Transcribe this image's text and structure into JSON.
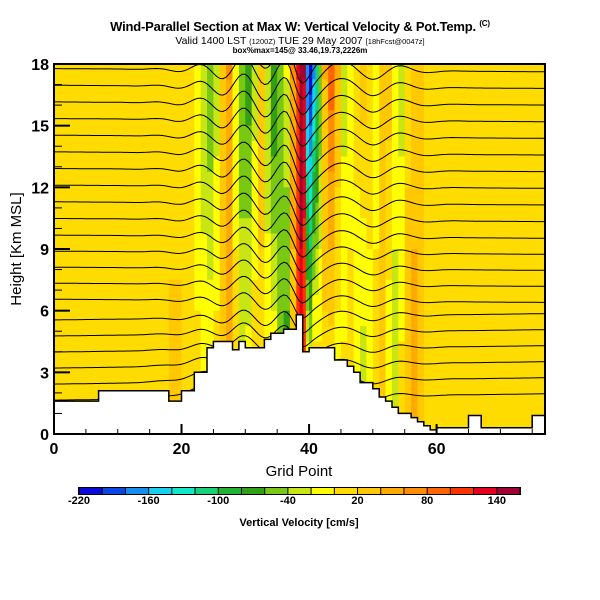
{
  "header": {
    "title": "Wind-Parallel Section at Max W: Vertical Velocity & Pot.Temp.",
    "copyright": "(C)",
    "valid_prefix": "Valid 1400 LST",
    "valid_utc": "(1200Z)",
    "valid_date": "TUE 29 May 2007",
    "valid_suffix": "[18hFcst@0047z]",
    "subtitle": "box%max=145@ 33.46,19.73,2226m"
  },
  "chart_data": {
    "type": "heatmap",
    "title": "Wind-Parallel Section at Max W: Vertical Velocity & Pot.Temp.",
    "xlabel": "Grid Point",
    "ylabel": "Height [Km MSL]",
    "xlim": [
      0,
      77
    ],
    "ylim": [
      0,
      18
    ],
    "x_ticks": [
      "0",
      "20",
      "40",
      "60"
    ],
    "x_tick_values": [
      0,
      20,
      40,
      60
    ],
    "y_ticks": [
      "0",
      "3",
      "6",
      "9",
      "12",
      "15",
      "18"
    ],
    "y_tick_values": [
      0,
      3,
      6,
      9,
      12,
      15,
      18
    ],
    "colorbar": {
      "title": "Vertical Velocity [cm/s]",
      "tick_labels": [
        "-220",
        "-160",
        "-100",
        "-40",
        "20",
        "80",
        "140"
      ],
      "levels": [
        -220,
        -200,
        -180,
        -160,
        -140,
        -120,
        -100,
        -80,
        -60,
        -40,
        -20,
        0,
        20,
        40,
        60,
        80,
        100,
        120,
        140,
        160
      ],
      "colors": [
        "#0a0ad8",
        "#0a46e6",
        "#148cf0",
        "#14d2f0",
        "#14e6c8",
        "#14d278",
        "#1eb432",
        "#32a014",
        "#78c814",
        "#c8e614",
        "#ffff00",
        "#ffdc00",
        "#ffc800",
        "#ffaa00",
        "#ff8c00",
        "#ff6400",
        "#ff3200",
        "#e6001e",
        "#a00032"
      ]
    },
    "vertical_velocity_columns": {
      "description_units": "cm/s",
      "x": [
        0,
        2,
        4,
        6,
        8,
        10,
        12,
        14,
        16,
        18,
        20,
        22,
        23,
        24,
        25,
        26,
        27,
        28,
        29,
        30,
        31,
        32,
        33,
        34,
        35,
        36,
        37,
        38,
        38.5,
        39,
        39.5,
        40,
        40.5,
        41,
        41.5,
        42,
        43,
        44,
        45,
        46,
        47,
        48,
        49,
        50,
        51,
        52,
        53,
        54,
        55,
        56,
        57,
        58,
        60,
        62,
        64,
        66,
        68,
        70,
        72,
        74,
        77
      ],
      "w_upper": [
        5,
        5,
        8,
        5,
        8,
        5,
        8,
        10,
        8,
        5,
        8,
        -20,
        -40,
        -60,
        -30,
        30,
        60,
        -20,
        -60,
        -70,
        -30,
        30,
        -40,
        -80,
        -60,
        -20,
        60,
        120,
        150,
        140,
        -180,
        -210,
        -170,
        -120,
        -60,
        40,
        90,
        40,
        -30,
        -20,
        10,
        30,
        10,
        -10,
        20,
        30,
        -10,
        -30,
        10,
        20,
        30,
        10,
        5,
        5,
        8,
        5,
        5,
        5,
        5,
        5,
        5
      ],
      "w_lower": [
        5,
        8,
        5,
        10,
        8,
        5,
        8,
        10,
        20,
        30,
        20,
        10,
        5,
        8,
        15,
        30,
        50,
        20,
        -10,
        0,
        20,
        10,
        5,
        10,
        -40,
        -80,
        20,
        100,
        130,
        90,
        30,
        10,
        60,
        40,
        20,
        10,
        -10,
        -20,
        10,
        20,
        -20,
        -40,
        -10,
        10,
        30,
        -20,
        -30,
        10,
        40,
        60,
        30,
        10,
        8,
        10,
        5,
        8,
        5,
        5,
        5,
        5,
        5
      ]
    },
    "potential_temperature_contours": {
      "note": "black isentropes, labels illegible at source resolution",
      "count": 22
    },
    "terrain": {
      "x": [
        0,
        7,
        7,
        18,
        18,
        20,
        20,
        22,
        22,
        24,
        24,
        25,
        25,
        28,
        28,
        29,
        29,
        30,
        30,
        33,
        33,
        34,
        34,
        36,
        36,
        38,
        38,
        39,
        39,
        40,
        40,
        44,
        44,
        46,
        46,
        47,
        47,
        48,
        48,
        50,
        50,
        51,
        51,
        52,
        52,
        53,
        53,
        54,
        54,
        56,
        56,
        57,
        57,
        58,
        58,
        59,
        59,
        60,
        60,
        65,
        65,
        67,
        67,
        68,
        68,
        75,
        75,
        77
      ],
      "height_km": [
        1.6,
        1.6,
        2.1,
        2.1,
        1.6,
        1.6,
        2.1,
        2.1,
        3.0,
        3.0,
        4.2,
        4.2,
        4.5,
        4.5,
        4.1,
        4.1,
        4.5,
        4.5,
        4.2,
        4.2,
        4.6,
        4.6,
        4.9,
        4.9,
        5.1,
        5.1,
        5.8,
        5.8,
        4.0,
        4.0,
        4.2,
        4.2,
        3.6,
        3.6,
        3.3,
        3.3,
        3.0,
        3.0,
        2.5,
        2.5,
        2.2,
        2.2,
        1.8,
        1.8,
        1.6,
        1.6,
        1.3,
        1.3,
        1.0,
        1.0,
        0.8,
        0.8,
        0.6,
        0.6,
        0.4,
        0.4,
        0.2,
        0.2,
        0.3,
        0.3,
        0.9,
        0.9,
        0.3,
        0.3,
        0.3,
        0.3,
        0.9,
        0.9
      ]
    }
  }
}
